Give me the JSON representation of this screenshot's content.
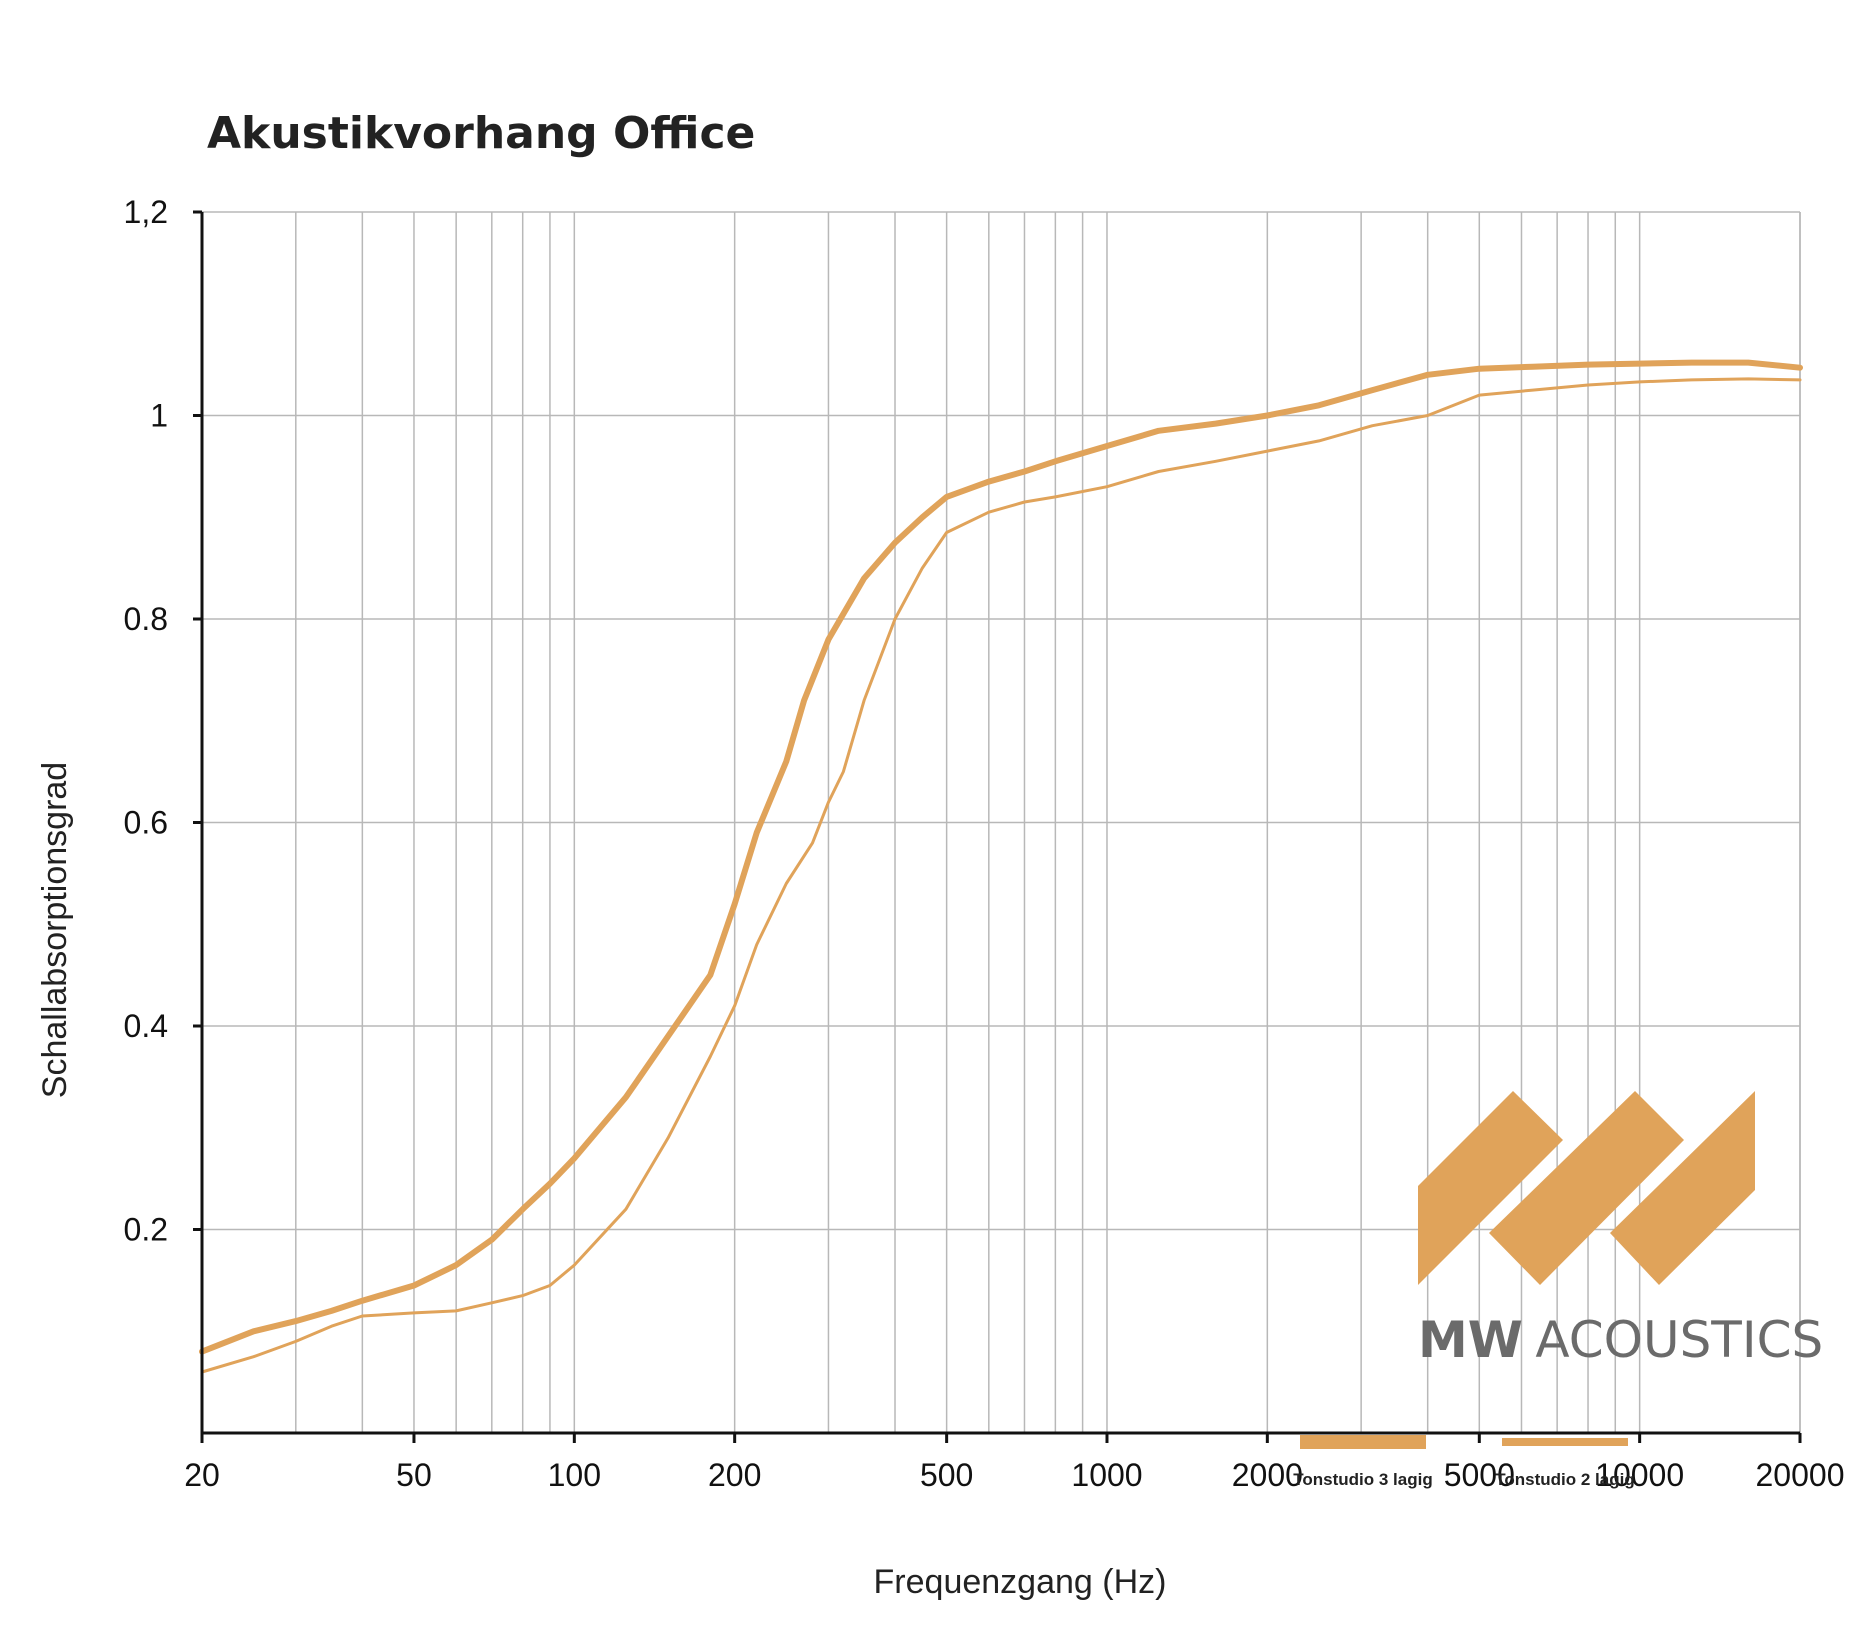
{
  "chart_data": {
    "type": "line",
    "title": "Akustikvorhang Office",
    "xlabel": "Frequenzgang (Hz)",
    "ylabel": "Schallabsorptionsgrad",
    "xscale": "log",
    "xlim": [
      20,
      20000
    ],
    "ylim": [
      0,
      1.2
    ],
    "grid": true,
    "legend_position": "bottom-right",
    "x_ticks": [
      {
        "value": 20,
        "label": "20"
      },
      {
        "value": 50,
        "label": "50"
      },
      {
        "value": 100,
        "label": "100"
      },
      {
        "value": 200,
        "label": "200"
      },
      {
        "value": 500,
        "label": "500"
      },
      {
        "value": 1000,
        "label": "1000"
      },
      {
        "value": 2000,
        "label": "2000"
      },
      {
        "value": 5000,
        "label": "5000"
      },
      {
        "value": 10000,
        "label": "10000"
      },
      {
        "value": 20000,
        "label": "20000"
      }
    ],
    "y_ticks": [
      {
        "value": 0.2,
        "label": "0.2"
      },
      {
        "value": 0.4,
        "label": "0.4"
      },
      {
        "value": 0.6,
        "label": "0.6"
      },
      {
        "value": 0.8,
        "label": "0.8"
      },
      {
        "value": 1.0,
        "label": "1"
      },
      {
        "value": 1.2,
        "label": "1,2"
      }
    ],
    "series": [
      {
        "name": "Tonstudio 3 lagig",
        "color": "#e0a35a",
        "width": "thick",
        "points": [
          [
            20,
            0.08
          ],
          [
            25,
            0.1
          ],
          [
            30,
            0.11
          ],
          [
            35,
            0.12
          ],
          [
            40,
            0.13
          ],
          [
            50,
            0.145
          ],
          [
            60,
            0.165
          ],
          [
            70,
            0.19
          ],
          [
            80,
            0.22
          ],
          [
            90,
            0.245
          ],
          [
            100,
            0.27
          ],
          [
            125,
            0.33
          ],
          [
            150,
            0.39
          ],
          [
            180,
            0.45
          ],
          [
            200,
            0.52
          ],
          [
            220,
            0.59
          ],
          [
            250,
            0.66
          ],
          [
            270,
            0.72
          ],
          [
            300,
            0.78
          ],
          [
            350,
            0.84
          ],
          [
            400,
            0.875
          ],
          [
            450,
            0.9
          ],
          [
            500,
            0.92
          ],
          [
            600,
            0.935
          ],
          [
            700,
            0.945
          ],
          [
            800,
            0.955
          ],
          [
            1000,
            0.97
          ],
          [
            1250,
            0.985
          ],
          [
            1600,
            0.992
          ],
          [
            2000,
            1.0
          ],
          [
            2500,
            1.01
          ],
          [
            3150,
            1.025
          ],
          [
            4000,
            1.04
          ],
          [
            5000,
            1.046
          ],
          [
            6300,
            1.048
          ],
          [
            8000,
            1.05
          ],
          [
            10000,
            1.051
          ],
          [
            12500,
            1.052
          ],
          [
            16000,
            1.052
          ],
          [
            20000,
            1.047
          ]
        ]
      },
      {
        "name": "Tonstudio 2 lagig",
        "color": "#e0a35a",
        "width": "thin",
        "points": [
          [
            20,
            0.06
          ],
          [
            25,
            0.075
          ],
          [
            30,
            0.09
          ],
          [
            35,
            0.105
          ],
          [
            40,
            0.115
          ],
          [
            50,
            0.118
          ],
          [
            60,
            0.12
          ],
          [
            70,
            0.128
          ],
          [
            80,
            0.135
          ],
          [
            90,
            0.145
          ],
          [
            100,
            0.165
          ],
          [
            125,
            0.22
          ],
          [
            150,
            0.29
          ],
          [
            180,
            0.37
          ],
          [
            200,
            0.42
          ],
          [
            220,
            0.48
          ],
          [
            250,
            0.54
          ],
          [
            280,
            0.58
          ],
          [
            300,
            0.62
          ],
          [
            320,
            0.65
          ],
          [
            350,
            0.72
          ],
          [
            400,
            0.8
          ],
          [
            450,
            0.85
          ],
          [
            500,
            0.885
          ],
          [
            600,
            0.905
          ],
          [
            700,
            0.915
          ],
          [
            800,
            0.92
          ],
          [
            1000,
            0.93
          ],
          [
            1250,
            0.945
          ],
          [
            1600,
            0.955
          ],
          [
            2000,
            0.965
          ],
          [
            2500,
            0.975
          ],
          [
            3150,
            0.99
          ],
          [
            4000,
            1.0
          ],
          [
            5000,
            1.02
          ],
          [
            6300,
            1.025
          ],
          [
            8000,
            1.03
          ],
          [
            10000,
            1.033
          ],
          [
            12500,
            1.035
          ],
          [
            16000,
            1.036
          ],
          [
            20000,
            1.035
          ]
        ]
      }
    ]
  },
  "logo": {
    "bold_text": "MW",
    "light_text": "ACOUSTICS",
    "color": "#e0a35a",
    "text_color": "#6b6b6b"
  },
  "grid_color": "#b8b8b8",
  "axis_color": "#111111"
}
